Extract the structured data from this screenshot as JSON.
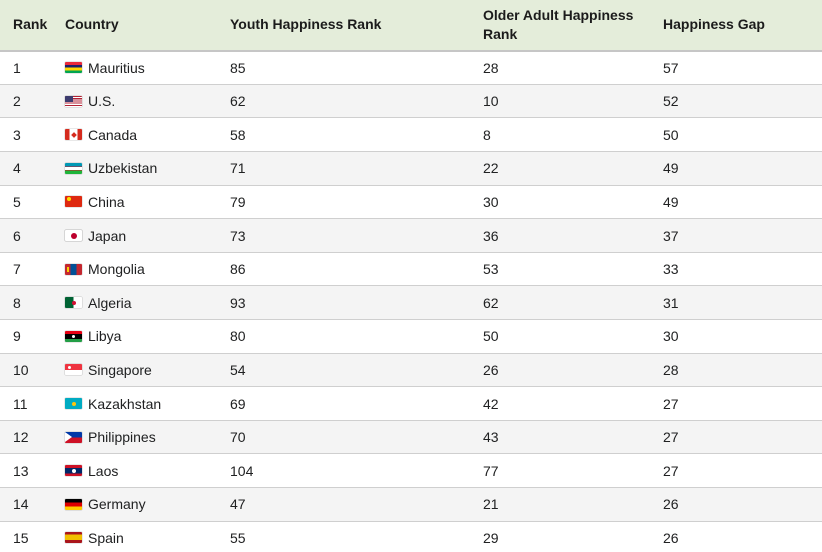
{
  "table": {
    "headers": [
      {
        "label": "Rank"
      },
      {
        "label": "Country"
      },
      {
        "label": "Youth Happiness Rank"
      },
      {
        "label": "Older Adult Happiness Rank"
      },
      {
        "label": "Happiness Gap"
      }
    ],
    "rows": [
      {
        "rank": "1",
        "country": "Mauritius",
        "flag": "mauritius",
        "youth": "85",
        "older": "28",
        "gap": "57"
      },
      {
        "rank": "2",
        "country": "U.S.",
        "flag": "us",
        "youth": "62",
        "older": "10",
        "gap": "52"
      },
      {
        "rank": "3",
        "country": "Canada",
        "flag": "canada",
        "youth": "58",
        "older": "8",
        "gap": "50"
      },
      {
        "rank": "4",
        "country": "Uzbekistan",
        "flag": "uzbekistan",
        "youth": "71",
        "older": "22",
        "gap": "49"
      },
      {
        "rank": "5",
        "country": "China",
        "flag": "china",
        "youth": "79",
        "older": "30",
        "gap": "49"
      },
      {
        "rank": "6",
        "country": "Japan",
        "flag": "japan",
        "youth": "73",
        "older": "36",
        "gap": "37"
      },
      {
        "rank": "7",
        "country": "Mongolia",
        "flag": "mongolia",
        "youth": "86",
        "older": "53",
        "gap": "33"
      },
      {
        "rank": "8",
        "country": "Algeria",
        "flag": "algeria",
        "youth": "93",
        "older": "62",
        "gap": "31"
      },
      {
        "rank": "9",
        "country": "Libya",
        "flag": "libya",
        "youth": "80",
        "older": "50",
        "gap": "30"
      },
      {
        "rank": "10",
        "country": "Singapore",
        "flag": "singapore",
        "youth": "54",
        "older": "26",
        "gap": "28"
      },
      {
        "rank": "11",
        "country": "Kazakhstan",
        "flag": "kazakhstan",
        "youth": "69",
        "older": "42",
        "gap": "27"
      },
      {
        "rank": "12",
        "country": "Philippines",
        "flag": "philippines",
        "youth": "70",
        "older": "43",
        "gap": "27"
      },
      {
        "rank": "13",
        "country": "Laos",
        "flag": "laos",
        "youth": "104",
        "older": "77",
        "gap": "27"
      },
      {
        "rank": "14",
        "country": "Germany",
        "flag": "germany",
        "youth": "47",
        "older": "21",
        "gap": "26"
      },
      {
        "rank": "15",
        "country": "Spain",
        "flag": "spain",
        "youth": "55",
        "older": "29",
        "gap": "26"
      }
    ]
  },
  "colors": {
    "header_bg": "#e4edda",
    "row_alt_bg": "#f4f4f4",
    "border": "#cfcfcf",
    "text": "#202122",
    "header_text": "#1b1b1b"
  }
}
